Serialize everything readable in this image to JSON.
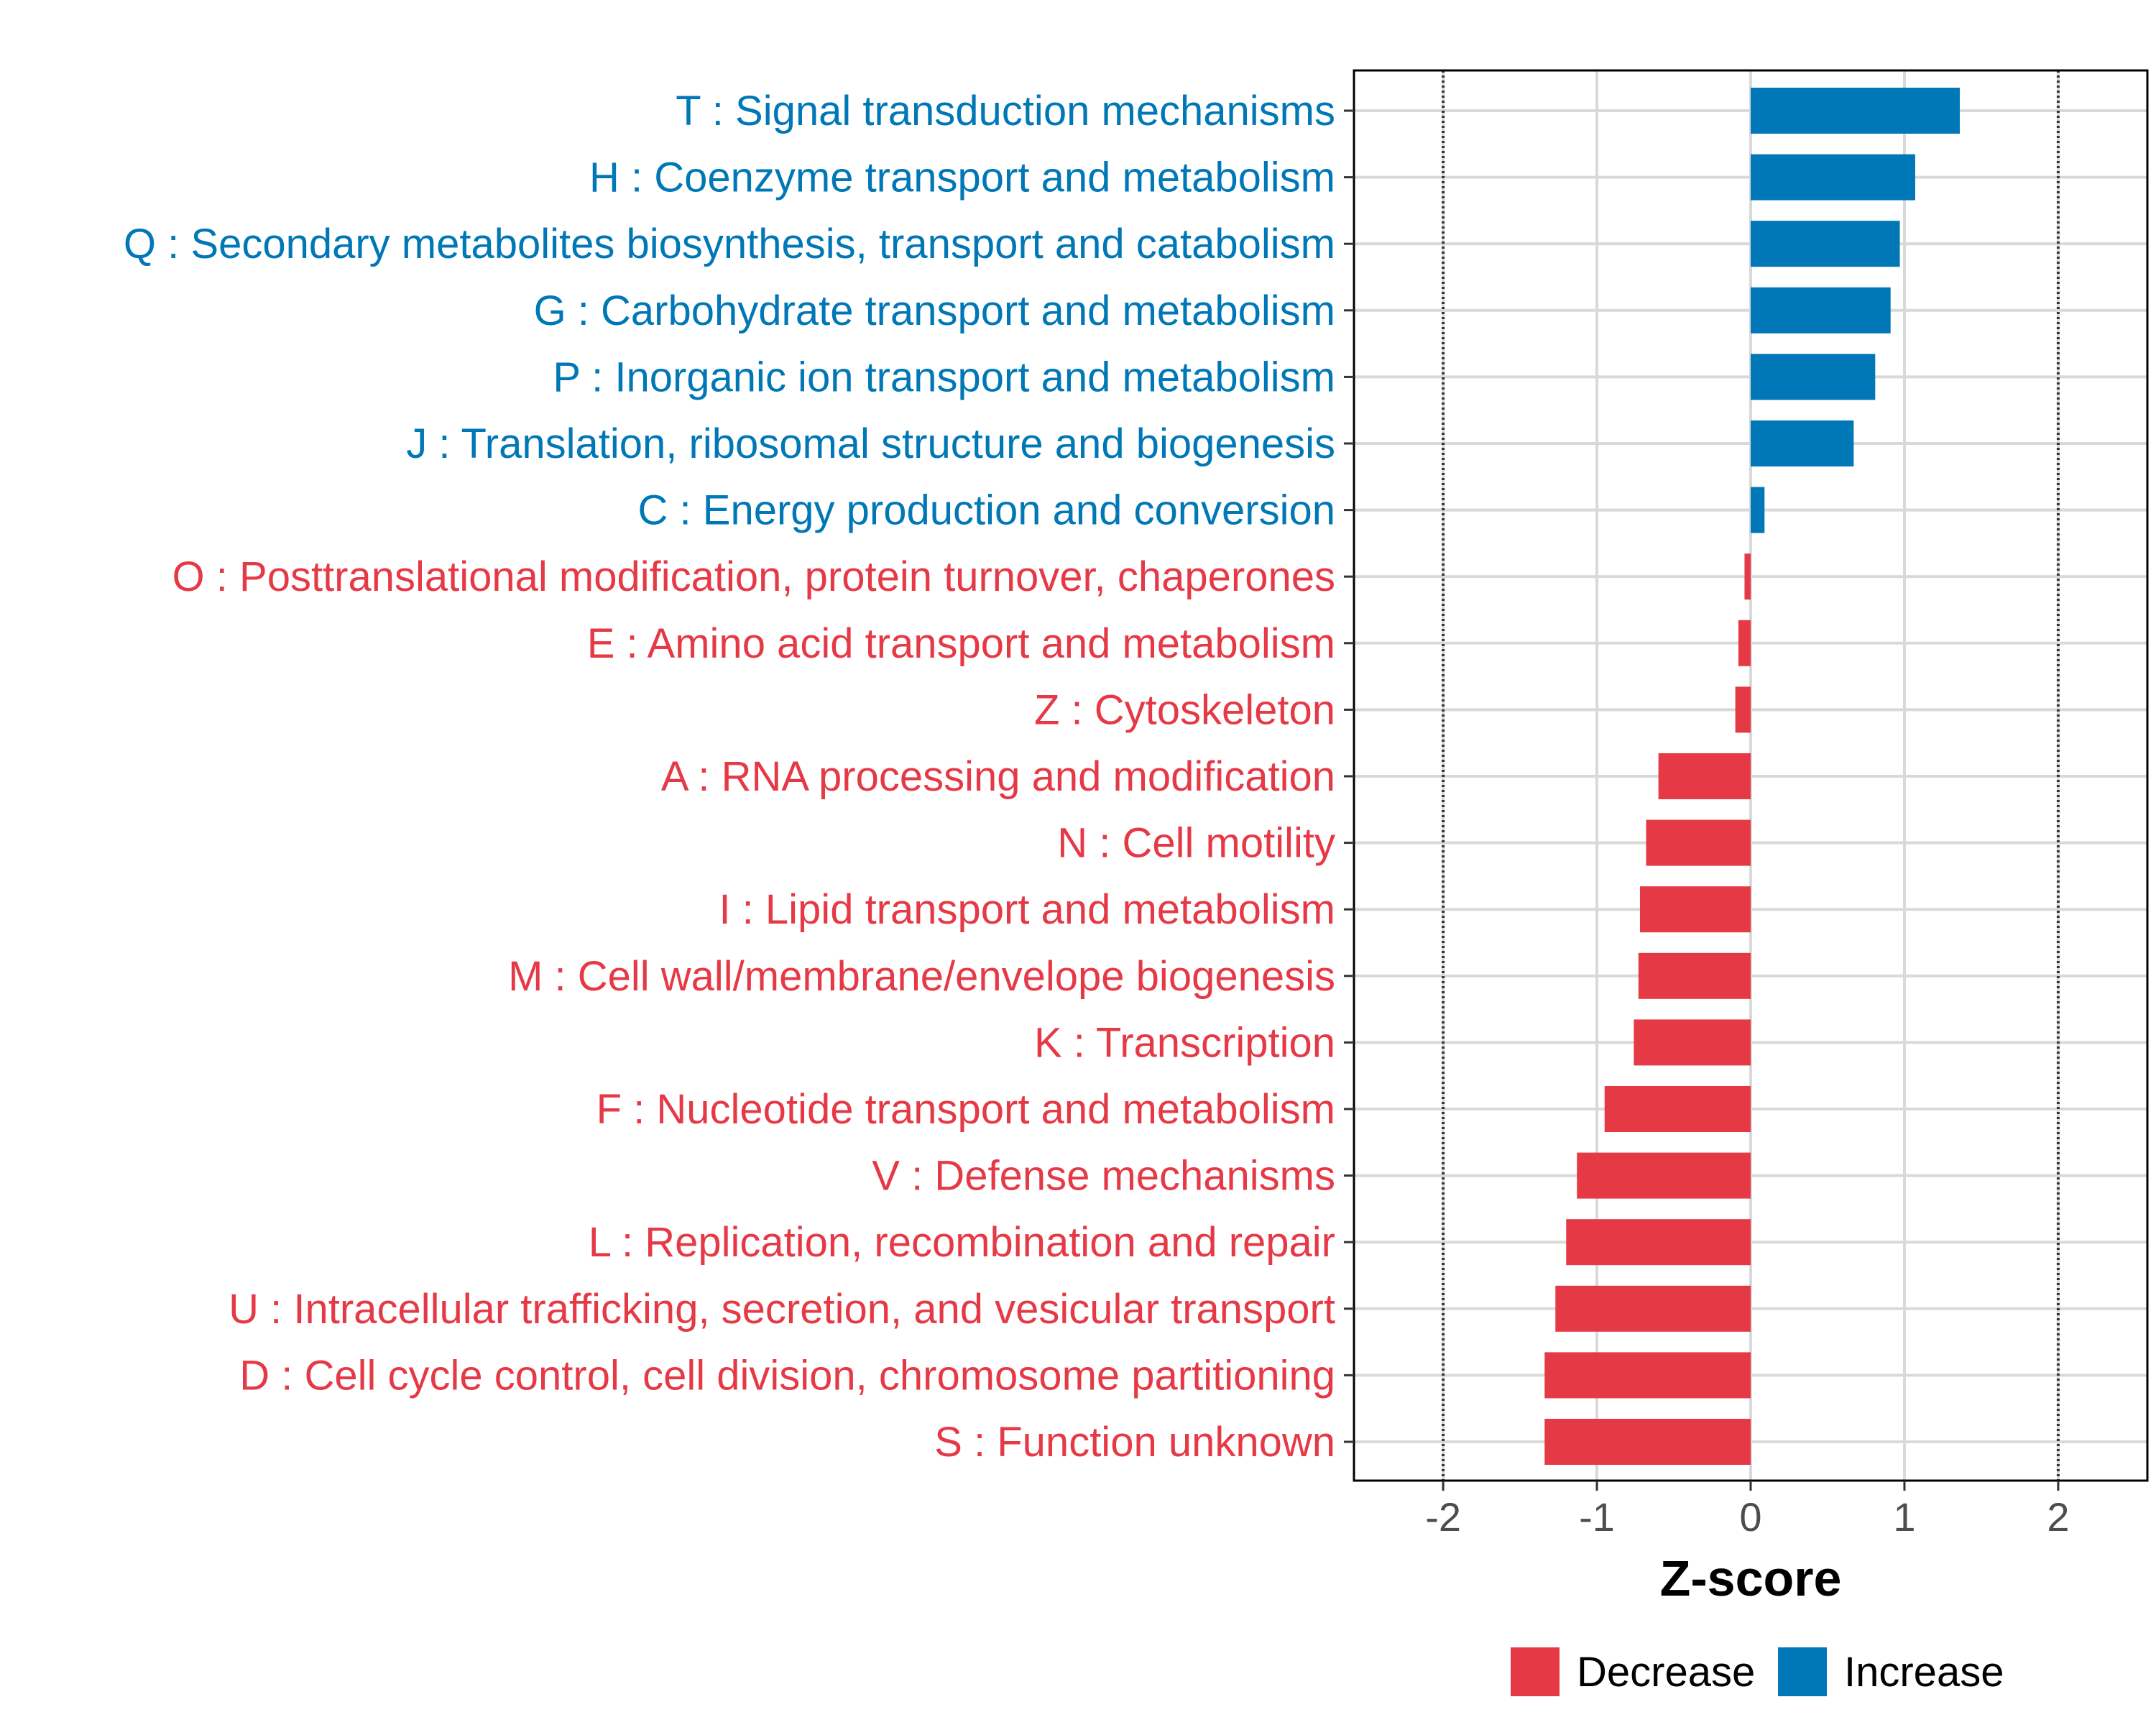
{
  "chart_data": {
    "type": "bar",
    "orientation": "horizontal",
    "title": "",
    "xlabel": "Z-score",
    "ylabel": "",
    "xlim": [
      -2.58,
      2.58
    ],
    "xticks": [
      -2,
      -1,
      0,
      1,
      2
    ],
    "xtick_labels": [
      "-2",
      "-1",
      "0",
      "1",
      "2"
    ],
    "reference_lines": [
      -2,
      2
    ],
    "grid": true,
    "legend_position": "bottom",
    "colors": {
      "Decrease": "#e63946",
      "Increase": "#0077b6"
    },
    "categories": [
      {
        "label": "T : Signal transduction mechanisms",
        "value": 1.36,
        "direction": "Increase"
      },
      {
        "label": "H : Coenzyme transport and metabolism",
        "value": 1.07,
        "direction": "Increase"
      },
      {
        "label": "Q : Secondary metabolites biosynthesis, transport and catabolism",
        "value": 0.97,
        "direction": "Increase"
      },
      {
        "label": "G : Carbohydrate transport and metabolism",
        "value": 0.91,
        "direction": "Increase"
      },
      {
        "label": "P : Inorganic ion transport and metabolism",
        "value": 0.81,
        "direction": "Increase"
      },
      {
        "label": "J : Translation, ribosomal structure and biogenesis",
        "value": 0.67,
        "direction": "Increase"
      },
      {
        "label": "C : Energy production and conversion",
        "value": 0.09,
        "direction": "Increase"
      },
      {
        "label": "O : Posttranslational modification, protein turnover, chaperones",
        "value": -0.04,
        "direction": "Decrease"
      },
      {
        "label": "E : Amino acid transport and metabolism",
        "value": -0.08,
        "direction": "Decrease"
      },
      {
        "label": "Z : Cytoskeleton",
        "value": -0.1,
        "direction": "Decrease"
      },
      {
        "label": "A : RNA processing and modification",
        "value": -0.6,
        "direction": "Decrease"
      },
      {
        "label": "N : Cell motility",
        "value": -0.68,
        "direction": "Decrease"
      },
      {
        "label": "I : Lipid transport and metabolism",
        "value": -0.72,
        "direction": "Decrease"
      },
      {
        "label": "M : Cell wall/membrane/envelope biogenesis",
        "value": -0.73,
        "direction": "Decrease"
      },
      {
        "label": "K : Transcription",
        "value": -0.76,
        "direction": "Decrease"
      },
      {
        "label": "F : Nucleotide transport and metabolism",
        "value": -0.95,
        "direction": "Decrease"
      },
      {
        "label": "V : Defense mechanisms",
        "value": -1.13,
        "direction": "Decrease"
      },
      {
        "label": "L : Replication, recombination and repair",
        "value": -1.2,
        "direction": "Decrease"
      },
      {
        "label": "U : Intracellular trafficking, secretion, and vesicular transport",
        "value": -1.27,
        "direction": "Decrease"
      },
      {
        "label": "D : Cell cycle control, cell division, chromosome partitioning",
        "value": -1.34,
        "direction": "Decrease"
      },
      {
        "label": "S : Function unknown",
        "value": -1.34,
        "direction": "Decrease"
      }
    ],
    "legend": [
      {
        "label": "Decrease",
        "color": "#e63946"
      },
      {
        "label": "Increase",
        "color": "#0077b6"
      }
    ]
  }
}
